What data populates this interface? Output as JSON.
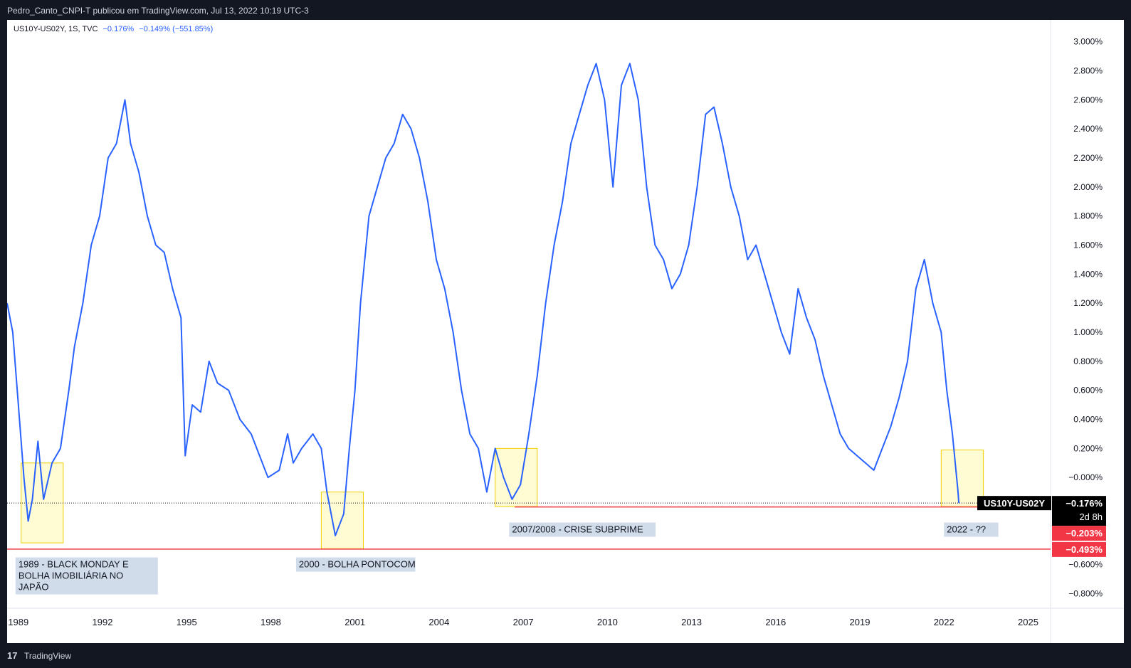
{
  "header": {
    "publish_line": "Pedro_Canto_CNPI-T publicou em TradingView.com, Jul 13, 2022 10:19 UTC-3"
  },
  "legend": {
    "symbol": "US10Y-US02Y, 1S, TVC",
    "v1": "−0.176%",
    "v2": "−0.149% (−551.85%)"
  },
  "price_labels": {
    "symbol": "US10Y-US02Y",
    "last": "−0.176%",
    "countdown": "2d 8h",
    "level1": "−0.203%",
    "level2": "−0.493%"
  },
  "annotations": [
    {
      "text": "1989 - BLACK MONDAY E BOLHA IMOBILIÁRIA NO JAPÃO"
    },
    {
      "text": "2000 - BOLHA PONTOCOM"
    },
    {
      "text": "2007/2008 - CRISE SUBPRIME"
    },
    {
      "text": "2022 - ??"
    }
  ],
  "footer": {
    "logo_icon": "tradingview-logo-icon",
    "brand": "TradingView"
  },
  "colors": {
    "line": "#2962ff",
    "support": "#f23645",
    "highlight": "#fff9c4",
    "highlight_border": "#f0d000",
    "label_bg": "#d0dcea"
  },
  "chart_data": {
    "type": "line",
    "series": [
      {
        "name": "US10Y-US02Y",
        "points": [
          [
            1988.6,
            1.2
          ],
          [
            1988.8,
            1.0
          ],
          [
            1989.0,
            0.5
          ],
          [
            1989.2,
            0.0
          ],
          [
            1989.35,
            -0.3
          ],
          [
            1989.5,
            -0.15
          ],
          [
            1989.7,
            0.25
          ],
          [
            1989.9,
            -0.15
          ],
          [
            1990.2,
            0.1
          ],
          [
            1990.5,
            0.2
          ],
          [
            1990.8,
            0.6
          ],
          [
            1991.0,
            0.9
          ],
          [
            1991.3,
            1.2
          ],
          [
            1991.6,
            1.6
          ],
          [
            1991.9,
            1.8
          ],
          [
            1992.2,
            2.2
          ],
          [
            1992.5,
            2.3
          ],
          [
            1992.8,
            2.6
          ],
          [
            1993.0,
            2.3
          ],
          [
            1993.3,
            2.1
          ],
          [
            1993.6,
            1.8
          ],
          [
            1993.9,
            1.6
          ],
          [
            1994.2,
            1.55
          ],
          [
            1994.5,
            1.3
          ],
          [
            1994.8,
            1.1
          ],
          [
            1994.95,
            0.15
          ],
          [
            1995.2,
            0.5
          ],
          [
            1995.5,
            0.45
          ],
          [
            1995.8,
            0.8
          ],
          [
            1996.1,
            0.65
          ],
          [
            1996.5,
            0.6
          ],
          [
            1996.9,
            0.4
          ],
          [
            1997.3,
            0.3
          ],
          [
            1997.6,
            0.15
          ],
          [
            1997.9,
            0.0
          ],
          [
            1998.3,
            0.05
          ],
          [
            1998.6,
            0.3
          ],
          [
            1998.8,
            0.1
          ],
          [
            1999.1,
            0.2
          ],
          [
            1999.5,
            0.3
          ],
          [
            1999.8,
            0.2
          ],
          [
            2000.0,
            -0.1
          ],
          [
            2000.3,
            -0.4
          ],
          [
            2000.6,
            -0.25
          ],
          [
            2000.8,
            0.2
          ],
          [
            2001.0,
            0.6
          ],
          [
            2001.2,
            1.2
          ],
          [
            2001.5,
            1.8
          ],
          [
            2001.8,
            2.0
          ],
          [
            2002.1,
            2.2
          ],
          [
            2002.4,
            2.3
          ],
          [
            2002.7,
            2.5
          ],
          [
            2003.0,
            2.4
          ],
          [
            2003.3,
            2.2
          ],
          [
            2003.6,
            1.9
          ],
          [
            2003.9,
            1.5
          ],
          [
            2004.2,
            1.3
          ],
          [
            2004.5,
            1.0
          ],
          [
            2004.8,
            0.6
          ],
          [
            2005.1,
            0.3
          ],
          [
            2005.4,
            0.2
          ],
          [
            2005.7,
            -0.1
          ],
          [
            2006.0,
            0.2
          ],
          [
            2006.3,
            0.0
          ],
          [
            2006.6,
            -0.15
          ],
          [
            2006.9,
            -0.05
          ],
          [
            2007.2,
            0.3
          ],
          [
            2007.5,
            0.7
          ],
          [
            2007.8,
            1.2
          ],
          [
            2008.1,
            1.6
          ],
          [
            2008.4,
            1.9
          ],
          [
            2008.7,
            2.3
          ],
          [
            2009.0,
            2.5
          ],
          [
            2009.3,
            2.7
          ],
          [
            2009.6,
            2.85
          ],
          [
            2009.9,
            2.6
          ],
          [
            2010.2,
            2.0
          ],
          [
            2010.5,
            2.7
          ],
          [
            2010.8,
            2.85
          ],
          [
            2011.1,
            2.6
          ],
          [
            2011.4,
            2.0
          ],
          [
            2011.7,
            1.6
          ],
          [
            2012.0,
            1.5
          ],
          [
            2012.3,
            1.3
          ],
          [
            2012.6,
            1.4
          ],
          [
            2012.9,
            1.6
          ],
          [
            2013.2,
            2.0
          ],
          [
            2013.5,
            2.5
          ],
          [
            2013.8,
            2.55
          ],
          [
            2014.1,
            2.3
          ],
          [
            2014.4,
            2.0
          ],
          [
            2014.7,
            1.8
          ],
          [
            2015.0,
            1.5
          ],
          [
            2015.3,
            1.6
          ],
          [
            2015.6,
            1.4
          ],
          [
            2015.9,
            1.2
          ],
          [
            2016.2,
            1.0
          ],
          [
            2016.5,
            0.85
          ],
          [
            2016.8,
            1.3
          ],
          [
            2017.1,
            1.1
          ],
          [
            2017.4,
            0.95
          ],
          [
            2017.7,
            0.7
          ],
          [
            2018.0,
            0.5
          ],
          [
            2018.3,
            0.3
          ],
          [
            2018.6,
            0.2
          ],
          [
            2018.9,
            0.15
          ],
          [
            2019.2,
            0.1
          ],
          [
            2019.5,
            0.05
          ],
          [
            2019.8,
            0.2
          ],
          [
            2020.1,
            0.35
          ],
          [
            2020.4,
            0.55
          ],
          [
            2020.7,
            0.8
          ],
          [
            2021.0,
            1.3
          ],
          [
            2021.3,
            1.5
          ],
          [
            2021.6,
            1.2
          ],
          [
            2021.9,
            1.0
          ],
          [
            2022.1,
            0.6
          ],
          [
            2022.3,
            0.3
          ],
          [
            2022.5,
            -0.1
          ],
          [
            2022.53,
            -0.176
          ]
        ]
      }
    ],
    "ylim": [
      -0.9,
      3.15
    ],
    "xlim": [
      1988.6,
      2025.8
    ],
    "y_ticks": [
      3.0,
      2.8,
      2.6,
      2.4,
      2.2,
      2.0,
      1.8,
      1.6,
      1.4,
      1.2,
      1.0,
      0.8,
      0.6,
      0.4,
      0.2,
      0.0,
      -0.6,
      -0.8
    ],
    "y_tick_labels": [
      "3.000%",
      "2.800%",
      "2.600%",
      "2.400%",
      "2.200%",
      "2.000%",
      "1.800%",
      "1.600%",
      "1.400%",
      "1.200%",
      "1.000%",
      "0.800%",
      "0.600%",
      "0.400%",
      "0.200%",
      "−0.000%",
      "−0.600%",
      "−0.800%"
    ],
    "x_ticks": [
      1989,
      1992,
      1995,
      1998,
      2001,
      2004,
      2007,
      2010,
      2013,
      2016,
      2019,
      2022,
      2025
    ],
    "x_tick_labels": [
      "1989",
      "1992",
      "1995",
      "1998",
      "2001",
      "2004",
      "2007",
      "2010",
      "2013",
      "2016",
      "2019",
      "2022",
      "2025"
    ],
    "horizontal_lines": [
      {
        "y": -0.493,
        "start": 1988.6,
        "color": "#f23645"
      },
      {
        "y": -0.203,
        "start": 2006.7,
        "color": "#f23645"
      },
      {
        "y": -0.176,
        "start": 1988.6,
        "style": "dotted"
      }
    ],
    "highlight_boxes": [
      {
        "x0": 1989.1,
        "x1": 1990.6,
        "y0": -0.45,
        "y1": 0.1
      },
      {
        "x0": 1999.8,
        "x1": 2001.3,
        "y0": -0.49,
        "y1": -0.1
      },
      {
        "x0": 2006.0,
        "x1": 2007.5,
        "y0": -0.2,
        "y1": 0.2
      },
      {
        "x0": 2021.9,
        "x1": 2023.4,
        "y0": -0.2,
        "y1": 0.19
      }
    ],
    "annotation_positions": [
      {
        "x": 1988.9,
        "y": -0.55
      },
      {
        "x": 1998.9,
        "y": -0.55
      },
      {
        "x": 2006.5,
        "y": -0.31
      },
      {
        "x": 2022.0,
        "y": -0.31
      }
    ],
    "grid": false,
    "legend": "top-left"
  }
}
